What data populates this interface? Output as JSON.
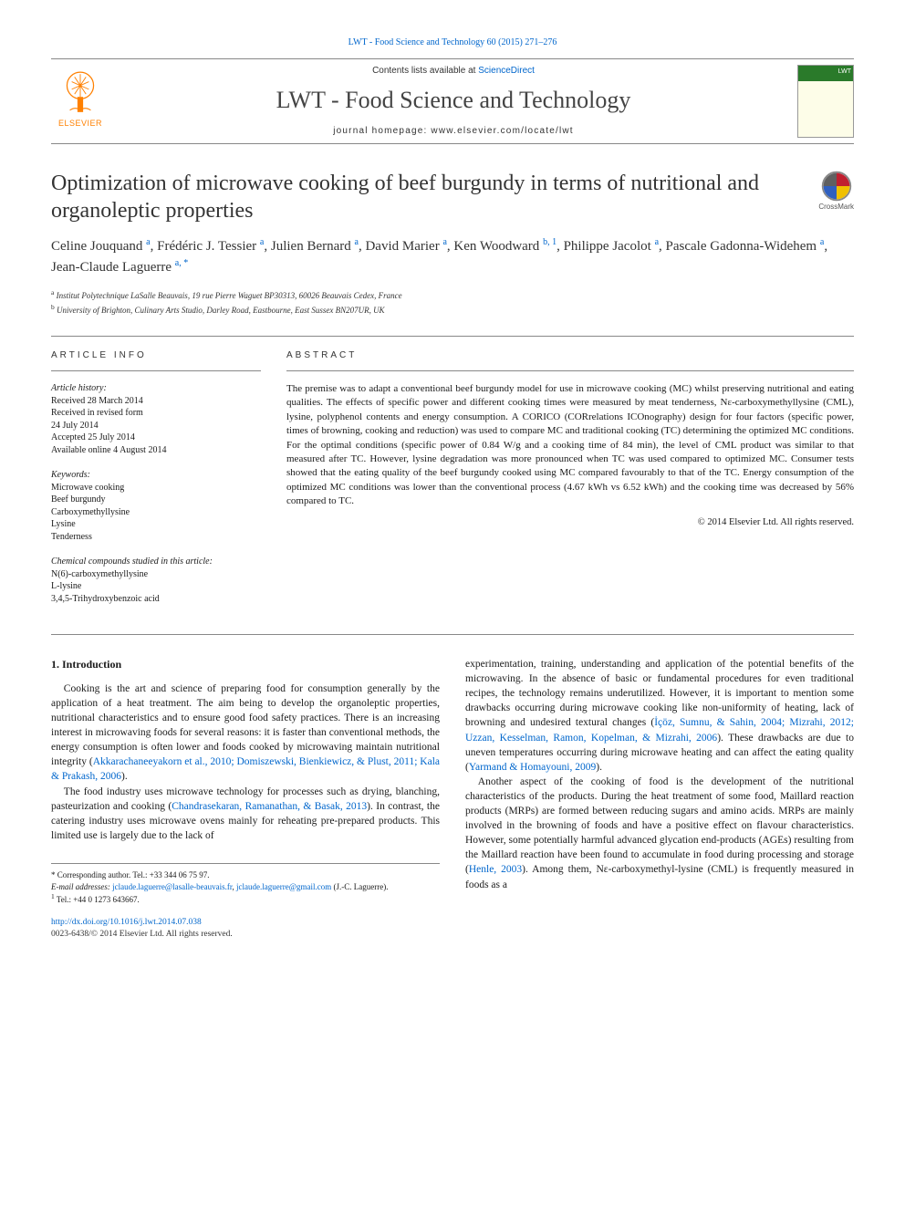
{
  "top_citation": {
    "text": "LWT - Food Science and Technology 60 (2015) 271–276",
    "link_color": "#0066cc"
  },
  "header": {
    "publisher_logo_text": "ELSEVIER",
    "publisher_logo_color": "#ff8000",
    "contents_prefix": "Contents lists available at ",
    "contents_link_text": "ScienceDirect",
    "journal_name": "LWT - Food Science and Technology",
    "homepage_label": "journal homepage: www.elsevier.com/locate/lwt",
    "cover_title": "LWT"
  },
  "crossmark_label": "CrossMark",
  "article": {
    "title": "Optimization of microwave cooking of beef burgundy in terms of nutritional and organoleptic properties",
    "authors_html": "Celine Jouquand <sup>a</sup>, Frédéric J. Tessier <sup>a</sup>, Julien Bernard <sup>a</sup>, David Marier <sup>a</sup>, Ken Woodward <sup>b, 1</sup>, Philippe Jacolot <sup>a</sup>, Pascale Gadonna-Widehem <sup>a</sup>, Jean-Claude Laguerre <sup>a, *</sup>",
    "affiliations": {
      "a": "Institut Polytechnique LaSalle Beauvais, 19 rue Pierre Waguet BP30313, 60026 Beauvais Cedex, France",
      "b": "University of Brighton, Culinary Arts Studio, Darley Road, Eastbourne, East Sussex BN207UR, UK"
    }
  },
  "article_info": {
    "heading": "ARTICLE INFO",
    "history_label": "Article history:",
    "history": [
      "Received 28 March 2014",
      "Received in revised form",
      "24 July 2014",
      "Accepted 25 July 2014",
      "Available online 4 August 2014"
    ],
    "keywords_label": "Keywords:",
    "keywords": [
      "Microwave cooking",
      "Beef burgundy",
      "Carboxymethyllysine",
      "Lysine",
      "Tenderness"
    ],
    "compounds_label": "Chemical compounds studied in this article:",
    "compounds": [
      "N(6)-carboxymethyllysine",
      "L-lysine",
      "3,4,5-Trihydroxybenzoic acid"
    ]
  },
  "abstract": {
    "heading": "ABSTRACT",
    "text": "The premise was to adapt a conventional beef burgundy model for use in microwave cooking (MC) whilst preserving nutritional and eating qualities. The effects of specific power and different cooking times were measured by meat tenderness, Nε-carboxymethyllysine (CML), lysine, polyphenol contents and energy consumption. A CORICO (CORrelations ICOnography) design for four factors (specific power, times of browning, cooking and reduction) was used to compare MC and traditional cooking (TC) determining the optimized MC conditions. For the optimal conditions (specific power of 0.84 W/g and a cooking time of 84 min), the level of CML product was similar to that measured after TC. However, lysine degradation was more pronounced when TC was used compared to optimized MC. Consumer tests showed that the eating quality of the beef burgundy cooked using MC compared favourably to that of the TC. Energy consumption of the optimized MC conditions was lower than the conventional process (4.67 kWh vs 6.52 kWh) and the cooking time was decreased by 56% compared to TC.",
    "copyright": "© 2014 Elsevier Ltd. All rights reserved."
  },
  "body": {
    "section_heading": "1. Introduction",
    "col1_p1": "Cooking is the art and science of preparing food for consumption generally by the application of a heat treatment. The aim being to develop the organoleptic properties, nutritional characteristics and to ensure good food safety practices. There is an increasing interest in microwaving foods for several reasons: it is faster than conventional methods, the energy consumption is often lower and foods cooked by microwaving maintain nutritional integrity (",
    "col1_cite1": "Akkarachaneeyakorn et al., 2010; Domiszewski, Bienkiewicz, & Plust, 2011; Kala & Prakash, 2006",
    "col1_p1_end": ").",
    "col1_p2_a": "The food industry uses microwave technology for processes such as drying, blanching, pasteurization and cooking (",
    "col1_cite2": "Chandrasekaran, Ramanathan, & Basak, 2013",
    "col1_p2_b": "). In contrast, the catering industry uses microwave ovens mainly for reheating pre-prepared products. This limited use is largely due to the lack of",
    "col2_p1_a": "experimentation, training, understanding and application of the potential benefits of the microwaving. In the absence of basic or fundamental procedures for even traditional recipes, the technology remains underutilized. However, it is important to mention some drawbacks occurring during microwave cooking like non-uniformity of heating, lack of browning and undesired textural changes (",
    "col2_cite1": "İçöz, Sumnu, & Sahin, 2004; Mizrahi, 2012; Uzzan, Kesselman, Ramon, Kopelman, & Mizrahi, 2006",
    "col2_p1_b": "). These drawbacks are due to uneven temperatures occurring during microwave heating and can affect the eating quality (",
    "col2_cite2": "Yarmand & Homayouni, 2009",
    "col2_p1_c": ").",
    "col2_p2_a": "Another aspect of the cooking of food is the development of the nutritional characteristics of the products. During the heat treatment of some food, Maillard reaction products (MRPs) are formed between reducing sugars and amino acids. MRPs are mainly involved in the browning of foods and have a positive effect on flavour characteristics. However, some potentially harmful advanced glycation end-products (AGEs) resulting from the Maillard reaction have been found to accumulate in food during processing and storage (",
    "col2_cite3": "Henle, 2003",
    "col2_p2_b": "). Among them, Nε-carboxymethyl-lysine (CML) is frequently measured in foods as a"
  },
  "footnotes": {
    "corr_label": "* Corresponding author. Tel.: +33 344 06 75 97.",
    "email_label": "E-mail addresses:",
    "email1": "jclaude.laguerre@lasalle-beauvais.fr",
    "email2": "jclaude.laguerre@gmail.com",
    "email_person": " (J.-C. Laguerre).",
    "note1": "Tel.: +44 0 1273 643667."
  },
  "doi": {
    "url": "http://dx.doi.org/10.1016/j.lwt.2014.07.038",
    "issn_line": "0023-6438/© 2014 Elsevier Ltd. All rights reserved."
  },
  "colors": {
    "link": "#0066cc",
    "publisher": "#ff8000",
    "rule": "#888888",
    "text": "#1a1a1a",
    "background": "#ffffff"
  },
  "typography": {
    "body_pt": 11.5,
    "title_pt": 24,
    "journal_pt": 26,
    "abstract_pt": 11,
    "info_pt": 10,
    "footnote_pt": 9
  }
}
